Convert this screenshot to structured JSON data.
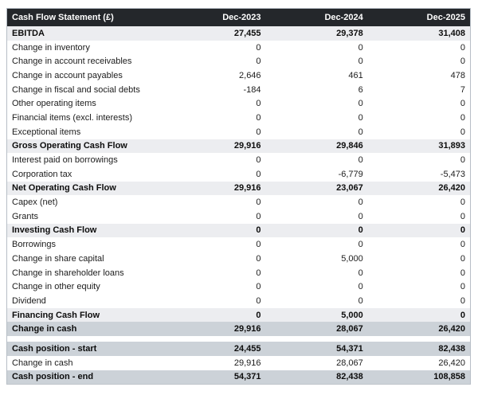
{
  "report": {
    "title": "Cash Flow Statement (£)",
    "columns": [
      "Dec-2023",
      "Dec-2024",
      "Dec-2025"
    ],
    "rows": [
      {
        "label": "EBITDA",
        "values": [
          "27,455",
          "29,378",
          "31,408"
        ],
        "style": "section"
      },
      {
        "label": "Change in inventory",
        "values": [
          "0",
          "0",
          "0"
        ],
        "style": "normal"
      },
      {
        "label": "Change in account receivables",
        "values": [
          "0",
          "0",
          "0"
        ],
        "style": "normal"
      },
      {
        "label": "Change in account payables",
        "values": [
          "2,646",
          "461",
          "478"
        ],
        "style": "normal"
      },
      {
        "label": "Change in fiscal and social debts",
        "values": [
          "-184",
          "6",
          "7"
        ],
        "style": "normal"
      },
      {
        "label": "Other operating items",
        "values": [
          "0",
          "0",
          "0"
        ],
        "style": "normal"
      },
      {
        "label": "Financial items (excl. interests)",
        "values": [
          "0",
          "0",
          "0"
        ],
        "style": "normal"
      },
      {
        "label": "Exceptional items",
        "values": [
          "0",
          "0",
          "0"
        ],
        "style": "normal"
      },
      {
        "label": "Gross Operating Cash Flow",
        "values": [
          "29,916",
          "29,846",
          "31,893"
        ],
        "style": "section"
      },
      {
        "label": "Interest paid on borrowings",
        "values": [
          "0",
          "0",
          "0"
        ],
        "style": "normal"
      },
      {
        "label": "Corporation tax",
        "values": [
          "0",
          "-6,779",
          "-5,473"
        ],
        "style": "normal"
      },
      {
        "label": "Net Operating Cash Flow",
        "values": [
          "29,916",
          "23,067",
          "26,420"
        ],
        "style": "section"
      },
      {
        "label": "Capex (net)",
        "values": [
          "0",
          "0",
          "0"
        ],
        "style": "normal"
      },
      {
        "label": "Grants",
        "values": [
          "0",
          "0",
          "0"
        ],
        "style": "normal"
      },
      {
        "label": "Investing Cash Flow",
        "values": [
          "0",
          "0",
          "0"
        ],
        "style": "section"
      },
      {
        "label": "Borrowings",
        "values": [
          "0",
          "0",
          "0"
        ],
        "style": "normal"
      },
      {
        "label": "Change in share capital",
        "values": [
          "0",
          "5,000",
          "0"
        ],
        "style": "normal"
      },
      {
        "label": "Change in shareholder loans",
        "values": [
          "0",
          "0",
          "0"
        ],
        "style": "normal"
      },
      {
        "label": "Change in other equity",
        "values": [
          "0",
          "0",
          "0"
        ],
        "style": "normal"
      },
      {
        "label": "Dividend",
        "values": [
          "0",
          "0",
          "0"
        ],
        "style": "normal"
      },
      {
        "label": "Financing Cash Flow",
        "values": [
          "0",
          "5,000",
          "0"
        ],
        "style": "section"
      },
      {
        "label": "Change in cash",
        "values": [
          "29,916",
          "28,067",
          "26,420"
        ],
        "style": "highlight"
      },
      {
        "label": "",
        "values": [],
        "style": "spacer"
      },
      {
        "label": "Cash position - start",
        "values": [
          "24,455",
          "54,371",
          "82,438"
        ],
        "style": "highlight"
      },
      {
        "label": "Change in cash",
        "values": [
          "29,916",
          "28,067",
          "26,420"
        ],
        "style": "normal"
      },
      {
        "label": "Cash position - end",
        "values": [
          "54,371",
          "82,438",
          "108,858"
        ],
        "style": "highlight"
      }
    ],
    "colors": {
      "header_bg": "#24272b",
      "header_text": "#ffffff",
      "section_row_bg": "#ecedf0",
      "highlight_row_bg": "#ccd2d8",
      "border": "#b7bec6"
    }
  }
}
